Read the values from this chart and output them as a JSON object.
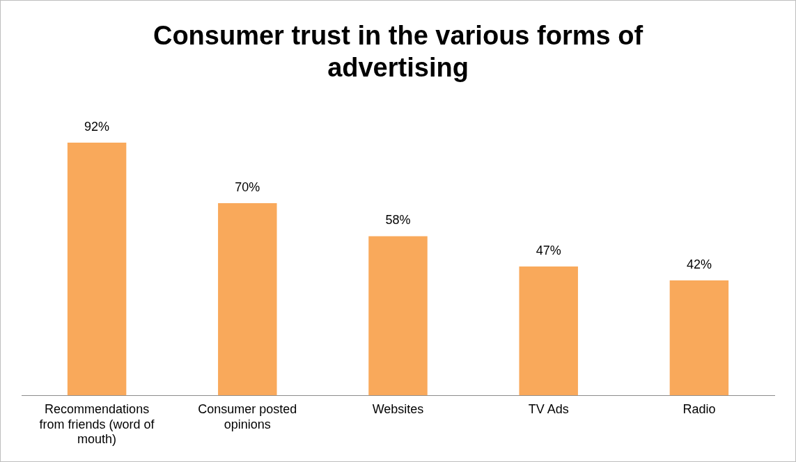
{
  "chart_data": {
    "type": "bar",
    "title": "Consumer trust in the various forms of advertising",
    "categories": [
      "Recommendations from friends (word of mouth)",
      "Consumer posted opinions",
      "Websites",
      "TV Ads",
      "Radio"
    ],
    "values": [
      92,
      70,
      58,
      47,
      42
    ],
    "value_labels": [
      "92%",
      "70%",
      "58%",
      "47%",
      "42%"
    ],
    "color": "#f9a95b"
  }
}
